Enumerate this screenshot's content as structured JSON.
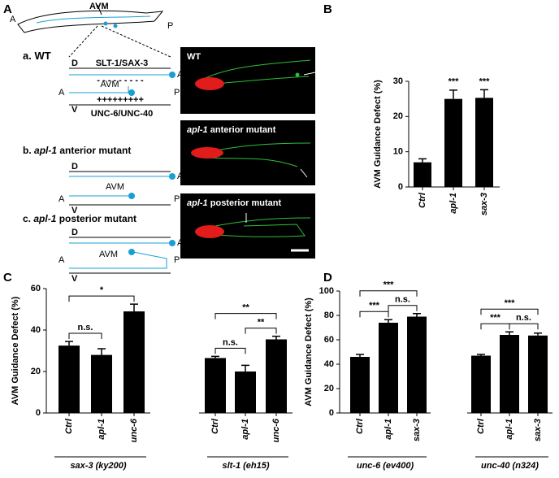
{
  "panel_a": {
    "label": "A",
    "worm": {
      "anterior": "A",
      "posterior": "P",
      "neuron": "AVM"
    },
    "rows": [
      {
        "index": "a.",
        "genotype": "WT",
        "diagram": {
          "dorsal": "D",
          "ventral": "V",
          "anterior": "A",
          "posterior": "P",
          "alm": "ALM",
          "avm": "AVM",
          "dorsal_cue": "SLT-1/SAX-3",
          "ventral_cue": "UNC-6/UNC-40",
          "repulsion": "- - - - - - - - -",
          "attraction": "+++++++++"
        },
        "image_label": {
          "genotype": "WT"
        }
      },
      {
        "index": "b.",
        "genotype": "apl-1",
        "phenotype": "anterior mutant",
        "diagram": {
          "dorsal": "D",
          "ventral": "V",
          "anterior": "A",
          "posterior": "P",
          "alm": "ALM",
          "avm": "AVM"
        },
        "image_label": {
          "genotype": "apl-1",
          "phenotype": "anterior mutant"
        }
      },
      {
        "index": "c.",
        "genotype": "apl-1",
        "phenotype": "posterior mutant",
        "diagram": {
          "dorsal": "D",
          "ventral": "V",
          "anterior": "A",
          "posterior": "P",
          "alm": "ALM",
          "avm": "AVM"
        },
        "image_label": {
          "genotype": "apl-1",
          "phenotype": "posterior mutant"
        }
      }
    ]
  },
  "chart_data": [
    {
      "type": "bar",
      "panel_label": "B",
      "ylabel": "AVM Guidance Defect (%)",
      "ylim": [
        0,
        30
      ],
      "yticks": [
        0,
        10,
        20,
        30
      ],
      "color": "#000000",
      "groups": [
        {
          "categories": [
            "Ctrl",
            "apl-1",
            "sax-3"
          ],
          "values": [
            7,
            25,
            25.3
          ],
          "errors": [
            1,
            2.5,
            2.3
          ],
          "annotations": [
            {
              "index": 1,
              "label": "***"
            },
            {
              "index": 2,
              "label": "***"
            }
          ]
        }
      ]
    },
    {
      "type": "bar",
      "panel_label": "C",
      "ylabel": "AVM Guidance Defect (%)",
      "ylim": [
        0,
        60
      ],
      "yticks": [
        0,
        20,
        40,
        60
      ],
      "color": "#000000",
      "groups": [
        {
          "name": "sax-3 (ky200)",
          "categories": [
            "Ctrl",
            "apl-1",
            "unc-6"
          ],
          "values": [
            32.5,
            28,
            49
          ],
          "errors": [
            2,
            3,
            3.5
          ],
          "comparisons": [
            {
              "between": [
                0,
                1
              ],
              "label": "n.s."
            },
            {
              "between": [
                0,
                2
              ],
              "label": "*"
            }
          ]
        },
        {
          "name": "slt-1 (eh15)",
          "categories": [
            "Ctrl",
            "apl-1",
            "unc-6"
          ],
          "values": [
            26.5,
            20,
            35.5
          ],
          "errors": [
            0.8,
            3,
            1.5
          ],
          "comparisons": [
            {
              "between": [
                0,
                1
              ],
              "label": "n.s."
            },
            {
              "between": [
                1,
                2
              ],
              "label": "**"
            },
            {
              "between": [
                0,
                2
              ],
              "label": "**"
            }
          ]
        }
      ]
    },
    {
      "type": "bar",
      "panel_label": "D",
      "ylabel": "AVM Guidance Defect (%)",
      "ylim": [
        0,
        100
      ],
      "yticks": [
        0,
        20,
        40,
        60,
        80,
        100
      ],
      "color": "#000000",
      "groups": [
        {
          "name": "unc-6 (ev400)",
          "categories": [
            "Ctrl",
            "apl-1",
            "sax-3"
          ],
          "values": [
            46,
            74,
            79
          ],
          "errors": [
            2,
            2.5,
            2.5
          ],
          "comparisons": [
            {
              "between": [
                0,
                1
              ],
              "label": "***"
            },
            {
              "between": [
                1,
                2
              ],
              "label": "n.s."
            },
            {
              "between": [
                0,
                2
              ],
              "label": "***"
            }
          ]
        },
        {
          "name": "unc-40 (n324)",
          "categories": [
            "Ctrl",
            "apl-1",
            "sax-3"
          ],
          "values": [
            47,
            64,
            63.5
          ],
          "errors": [
            1,
            2.5,
            2
          ],
          "comparisons": [
            {
              "between": [
                0,
                1
              ],
              "label": "***"
            },
            {
              "between": [
                1,
                2
              ],
              "label": "n.s."
            },
            {
              "between": [
                0,
                2
              ],
              "label": "***"
            }
          ]
        }
      ]
    }
  ]
}
